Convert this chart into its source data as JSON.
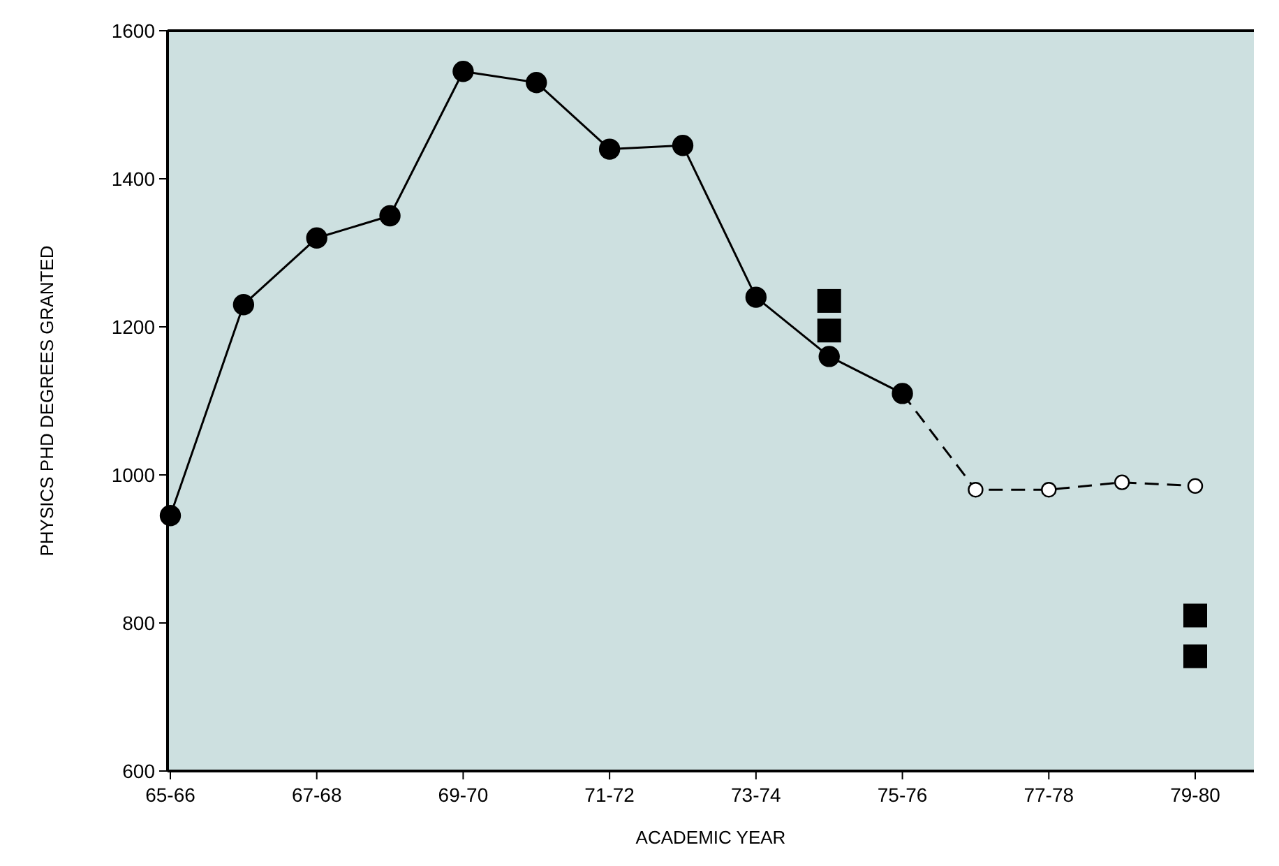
{
  "chart_data": {
    "type": "line",
    "xlabel": "ACADEMIC YEAR",
    "ylabel": "PHYSICS PHD DEGREES GRANTED",
    "categories": [
      "65-66",
      null,
      "67-68",
      null,
      "69-70",
      null,
      "71-72",
      null,
      "73-74",
      null,
      "75-76",
      null,
      "77-78",
      null,
      "79-80"
    ],
    "ylim": [
      600,
      1600
    ],
    "yticks": [
      600,
      800,
      1000,
      1200,
      1400,
      1600
    ],
    "grid": false,
    "series": [
      {
        "color": "#000000",
        "marker": "circle",
        "line_style": "dashed",
        "values": [
          null,
          null,
          null,
          null,
          null,
          null,
          null,
          null,
          null,
          null,
          1110,
          980,
          980,
          990,
          985
        ]
      },
      {
        "color": "#000000",
        "marker": "circle",
        "line_style": "solid",
        "values": [
          945,
          1230,
          1320,
          1350,
          1545,
          1530,
          1440,
          1445,
          1240,
          1160,
          1110,
          null,
          null,
          null,
          null
        ]
      },
      {
        "type": "scatter",
        "color": "#000000",
        "marker": "square",
        "values": [
          null,
          null,
          null,
          null,
          null,
          null,
          null,
          null,
          null,
          1235,
          null,
          null,
          null,
          null,
          810
        ]
      },
      {
        "type": "scatter",
        "color": "#000000",
        "marker": "square",
        "values": [
          null,
          null,
          null,
          null,
          null,
          null,
          null,
          null,
          null,
          1195,
          null,
          null,
          null,
          null,
          755
        ]
      }
    ]
  }
}
